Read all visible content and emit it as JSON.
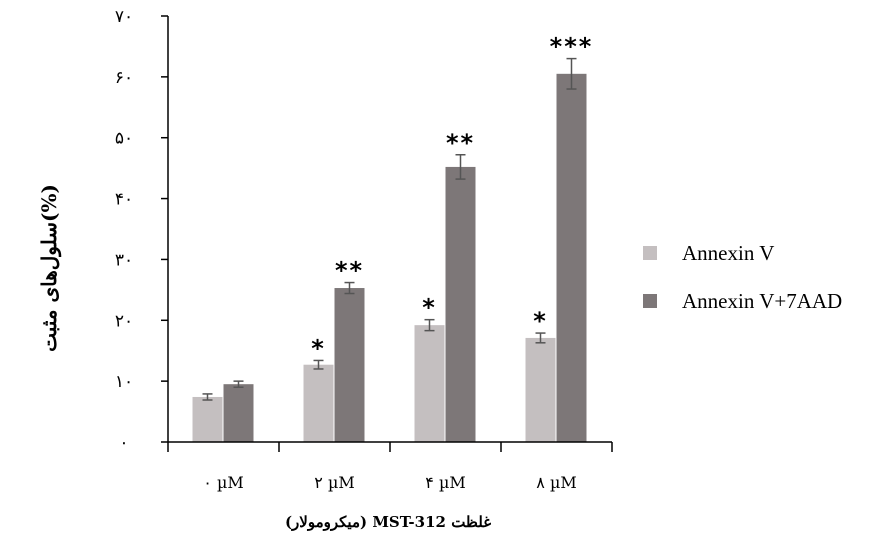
{
  "chart_data": {
    "type": "bar",
    "categories": [
      "۰ µM",
      "۲ µM",
      "۴ µM",
      "۸ µM"
    ],
    "series": [
      {
        "name": "Annexin V",
        "color": "#c4bfc0",
        "values": [
          7.4,
          12.7,
          19.2,
          17.1
        ],
        "errors": [
          0.5,
          0.7,
          0.9,
          0.8
        ],
        "significance": [
          "",
          "*",
          "*",
          "*"
        ]
      },
      {
        "name": "Annexin V+7AAD",
        "color": "#7d7778",
        "values": [
          9.5,
          25.3,
          45.2,
          60.5
        ],
        "errors": [
          0.5,
          0.9,
          2.0,
          2.5
        ],
        "significance": [
          "",
          "**",
          "**",
          "***"
        ]
      }
    ],
    "ylabel": "سلول‌های مثبت(%)",
    "xlabel": "غلظت MST-312 (میکرومولار)",
    "ylim": [
      0,
      70
    ],
    "yticks": [
      {
        "value": 0,
        "label": "۰"
      },
      {
        "value": 10,
        "label": "۱۰"
      },
      {
        "value": 20,
        "label": "۲۰"
      },
      {
        "value": 30,
        "label": "۳۰"
      },
      {
        "value": 40,
        "label": "۴۰"
      },
      {
        "value": 50,
        "label": "۵۰"
      },
      {
        "value": 60,
        "label": "۶۰"
      },
      {
        "value": 70,
        "label": "۷۰"
      }
    ],
    "grid": false,
    "legend": "right"
  }
}
